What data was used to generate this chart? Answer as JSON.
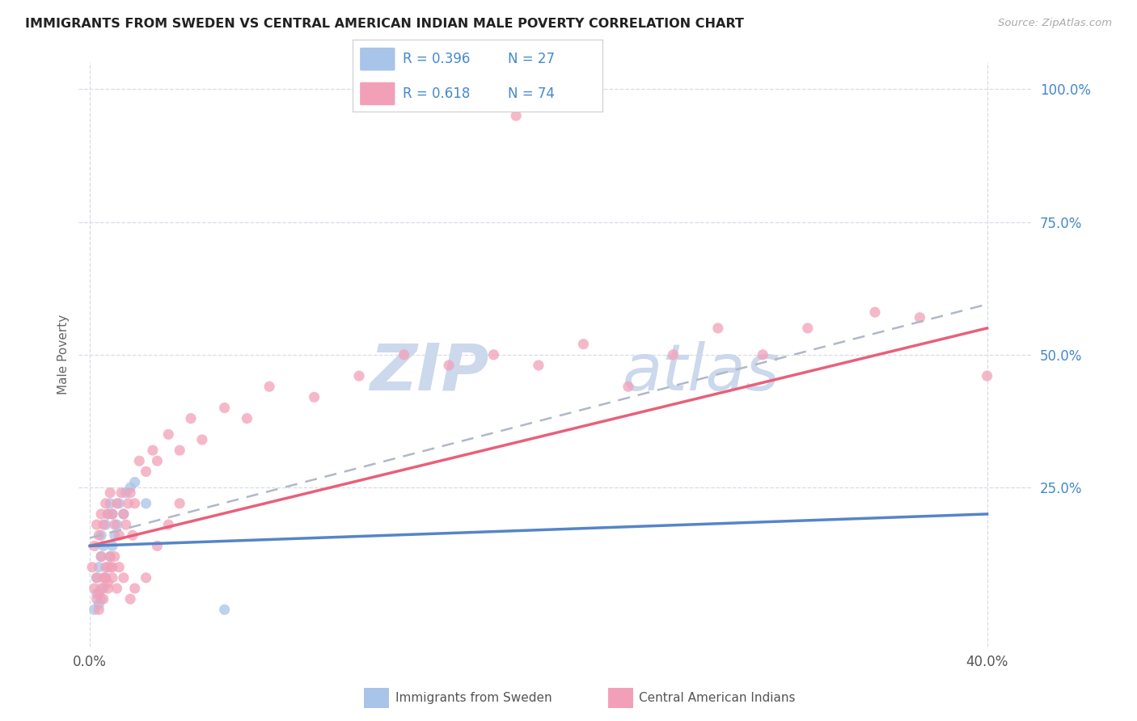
{
  "title": "IMMIGRANTS FROM SWEDEN VS CENTRAL AMERICAN INDIAN MALE POVERTY CORRELATION CHART",
  "source": "Source: ZipAtlas.com",
  "ylabel": "Male Poverty",
  "x_tick_labels": [
    "0.0%",
    "",
    "",
    "",
    "40.0%"
  ],
  "x_tick_values": [
    0.0,
    0.1,
    0.2,
    0.3,
    0.4
  ],
  "y_tick_labels": [
    "100.0%",
    "75.0%",
    "50.0%",
    "25.0%"
  ],
  "y_tick_values": [
    1.0,
    0.75,
    0.5,
    0.25
  ],
  "xlim": [
    -0.005,
    0.42
  ],
  "ylim": [
    -0.05,
    1.05
  ],
  "legend_label1": "Immigrants from Sweden",
  "legend_label2": "Central American Indians",
  "sweden_color": "#a8c4e8",
  "cai_color": "#f2a0b8",
  "trendline_sweden_color": "#5585c8",
  "trendline_cai_color": "#e8607a",
  "trendline_dashed_color": "#b0b8c8",
  "watermark_zip": "ZIP",
  "watermark_atlas": "atlas",
  "watermark_color": "#ccd8ec",
  "background_color": "#ffffff",
  "grid_color": "#d8dce8",
  "sweden_R": "0.396",
  "sweden_N": "27",
  "cai_R": "0.618",
  "cai_N": "74",
  "sweden_trend_x0": 0.0,
  "sweden_trend_y0": 0.14,
  "sweden_trend_x1": 0.4,
  "sweden_trend_y1": 0.2,
  "cai_trend_x0": 0.0,
  "cai_trend_y0": 0.14,
  "cai_trend_x1": 0.4,
  "cai_trend_y1": 0.55,
  "dashed_trend_x0": 0.0,
  "dashed_trend_y0": 0.155,
  "dashed_trend_x1": 0.4,
  "dashed_trend_y1": 0.595,
  "sweden_x": [
    0.002,
    0.003,
    0.003,
    0.004,
    0.004,
    0.005,
    0.005,
    0.005,
    0.006,
    0.006,
    0.007,
    0.007,
    0.008,
    0.008,
    0.009,
    0.009,
    0.01,
    0.01,
    0.011,
    0.012,
    0.013,
    0.015,
    0.016,
    0.018,
    0.02,
    0.025,
    0.06
  ],
  "sweden_y": [
    0.02,
    0.05,
    0.08,
    0.03,
    0.1,
    0.04,
    0.12,
    0.16,
    0.06,
    0.14,
    0.08,
    0.18,
    0.1,
    0.2,
    0.12,
    0.22,
    0.14,
    0.2,
    0.16,
    0.18,
    0.22,
    0.2,
    0.24,
    0.25,
    0.26,
    0.22,
    0.02
  ],
  "cai_x": [
    0.001,
    0.002,
    0.002,
    0.003,
    0.003,
    0.004,
    0.004,
    0.005,
    0.005,
    0.006,
    0.006,
    0.007,
    0.007,
    0.008,
    0.008,
    0.009,
    0.009,
    0.01,
    0.01,
    0.011,
    0.012,
    0.013,
    0.014,
    0.015,
    0.016,
    0.017,
    0.018,
    0.019,
    0.02,
    0.022,
    0.025,
    0.028,
    0.03,
    0.035,
    0.04,
    0.045,
    0.05,
    0.06,
    0.07,
    0.08,
    0.1,
    0.12,
    0.14,
    0.16,
    0.18,
    0.2,
    0.22,
    0.24,
    0.26,
    0.28,
    0.3,
    0.32,
    0.35,
    0.37,
    0.4,
    0.003,
    0.004,
    0.005,
    0.006,
    0.007,
    0.008,
    0.009,
    0.01,
    0.011,
    0.012,
    0.013,
    0.015,
    0.018,
    0.02,
    0.025,
    0.03,
    0.035,
    0.04,
    0.19
  ],
  "cai_y": [
    0.1,
    0.06,
    0.14,
    0.08,
    0.18,
    0.05,
    0.16,
    0.12,
    0.2,
    0.08,
    0.18,
    0.1,
    0.22,
    0.07,
    0.2,
    0.12,
    0.24,
    0.1,
    0.2,
    0.18,
    0.22,
    0.16,
    0.24,
    0.2,
    0.18,
    0.22,
    0.24,
    0.16,
    0.22,
    0.3,
    0.28,
    0.32,
    0.3,
    0.35,
    0.32,
    0.38,
    0.34,
    0.4,
    0.38,
    0.44,
    0.42,
    0.46,
    0.5,
    0.48,
    0.5,
    0.48,
    0.52,
    0.44,
    0.5,
    0.55,
    0.5,
    0.55,
    0.58,
    0.57,
    0.46,
    0.04,
    0.02,
    0.06,
    0.04,
    0.08,
    0.06,
    0.1,
    0.08,
    0.12,
    0.06,
    0.1,
    0.08,
    0.04,
    0.06,
    0.08,
    0.14,
    0.18,
    0.22,
    0.95
  ]
}
